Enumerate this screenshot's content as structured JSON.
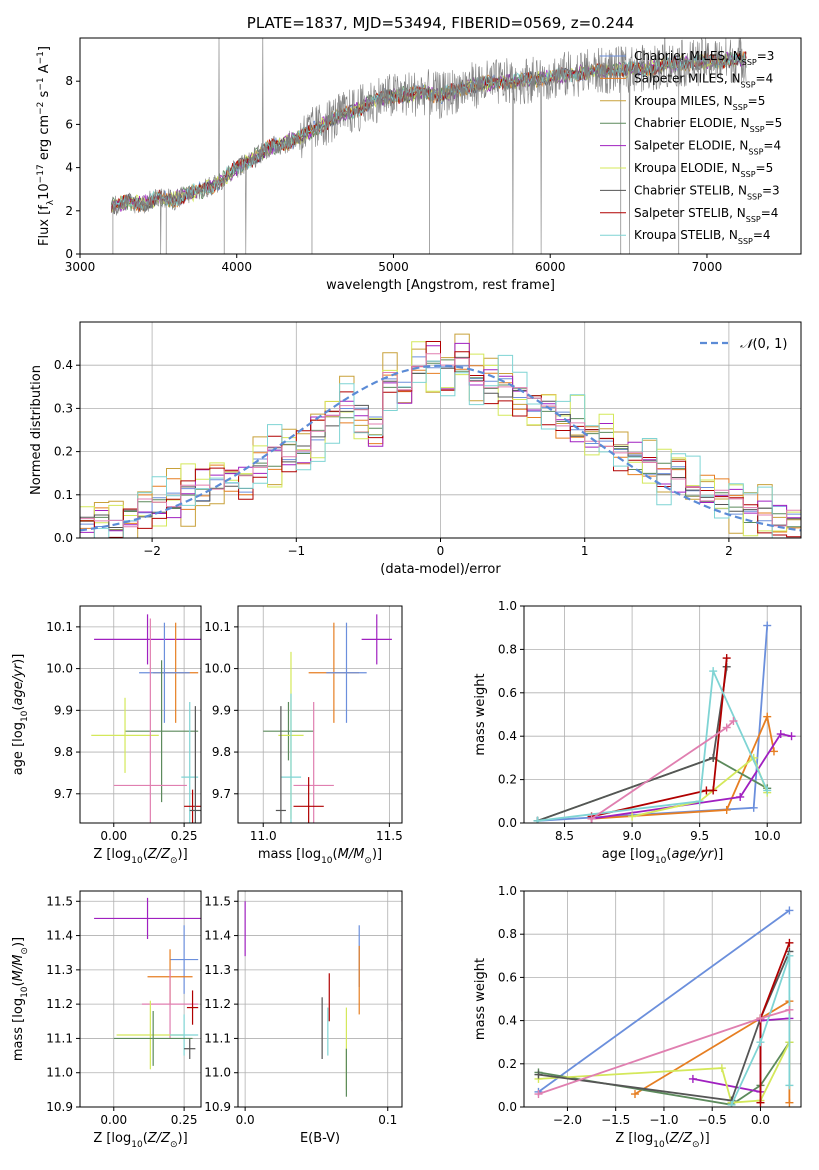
{
  "colors": {
    "Chabrier MILES": "#6b8fdc",
    "Salpeter MILES": "#e67e22",
    "Kroupa MILES": "#c8a13a",
    "Chabrier ELODIE": "#5c8a5c",
    "Salpeter ELODIE": "#a020c0",
    "Kroupa ELODIE": "#d4e85a",
    "Chabrier STELIB": "#555555",
    "Salpeter STELIB": "#b00000",
    "Kroupa STELIB": "#7fd4d4",
    "Pink": "#e07fb0",
    "normal_curve": "#5b8bd6",
    "observed_spectrum": "#808080"
  },
  "chart_data": [
    {
      "id": "spectrum",
      "type": "line",
      "title": "PLATE=1837, MJD=53494, FIBERID=0569, z=0.244",
      "xlabel": "wavelength [Angstrom, rest frame]",
      "ylabel": "Flux [fλ10⁻¹⁷ erg cm⁻² s⁻¹ A⁻¹]",
      "xlim": [
        3000,
        7600
      ],
      "ylim": [
        0,
        10
      ],
      "xticks": [
        3000,
        4000,
        5000,
        6000,
        7000
      ],
      "yticks": [
        0,
        2,
        4,
        6,
        8
      ],
      "grid": false,
      "legend_position": "top-right",
      "continuum": {
        "x": [
          3200,
          3300,
          3400,
          3500,
          3600,
          3700,
          3800,
          3900,
          4000,
          4100,
          4200,
          4300,
          4400,
          4500,
          4600,
          4700,
          4800,
          4900,
          5000,
          5100,
          5200,
          5300,
          5400,
          5500,
          5600,
          5800,
          6000,
          6200,
          6400,
          6600,
          6800,
          7000,
          7200
        ],
        "y": [
          2.2,
          2.4,
          2.3,
          2.6,
          2.5,
          2.8,
          3.0,
          3.4,
          4.0,
          4.4,
          4.9,
          5.1,
          5.4,
          5.8,
          6.2,
          6.5,
          6.8,
          7.2,
          7.3,
          7.4,
          7.5,
          7.3,
          7.6,
          7.8,
          7.9,
          8.0,
          8.2,
          8.4,
          8.5,
          8.6,
          8.8,
          8.9,
          9.0
        ]
      },
      "series": [
        {
          "name": "Chabrier MILES, N$_{SSP}$=3"
        },
        {
          "name": "Salpeter MILES, N$_{SSP}$=4"
        },
        {
          "name": "Kroupa MILES, N$_{SSP}$=5"
        },
        {
          "name": "Chabrier ELODIE, N$_{SSP}$=5"
        },
        {
          "name": "Salpeter ELODIE, N$_{SSP}$=4"
        },
        {
          "name": "Kroupa ELODIE, N$_{SSP}$=5"
        },
        {
          "name": "Chabrier STELIB, N$_{SSP}$=3"
        },
        {
          "name": "Salpeter STELIB, N$_{SSP}$=4"
        },
        {
          "name": "Kroupa STELIB, N$_{SSP}$=4"
        }
      ]
    },
    {
      "id": "residuals",
      "type": "line",
      "xlabel": "(data-model)/error",
      "ylabel": "Normed distribution",
      "xlim": [
        -2.5,
        2.5
      ],
      "ylim": [
        0,
        0.5
      ],
      "xticks": [
        -2,
        -1,
        0,
        1,
        2
      ],
      "yticks": [
        0.0,
        0.1,
        0.2,
        0.3,
        0.4
      ],
      "grid": true,
      "legend_position": "top-right",
      "legend": [
        "$\\mathcal{N}(0, 1)$"
      ],
      "hist_bins": [
        -2.5,
        -2.4,
        -2.3,
        -2.2,
        -2.1,
        -2.0,
        -1.9,
        -1.8,
        -1.7,
        -1.6,
        -1.5,
        -1.4,
        -1.3,
        -1.2,
        -1.1,
        -1.0,
        -0.9,
        -0.8,
        -0.7,
        -0.6,
        -0.5,
        -0.4,
        -0.3,
        -0.2,
        -0.1,
        0.0,
        0.1,
        0.2,
        0.3,
        0.4,
        0.5,
        0.6,
        0.7,
        0.8,
        0.9,
        1.0,
        1.1,
        1.2,
        1.3,
        1.4,
        1.5,
        1.6,
        1.7,
        1.8,
        1.9,
        2.0,
        2.1,
        2.2,
        2.3,
        2.4,
        2.5
      ],
      "hist_values": [
        0.03,
        0.03,
        0.04,
        0.05,
        0.07,
        0.08,
        0.09,
        0.1,
        0.11,
        0.13,
        0.14,
        0.13,
        0.17,
        0.19,
        0.2,
        0.22,
        0.24,
        0.27,
        0.3,
        0.29,
        0.26,
        0.37,
        0.34,
        0.4,
        0.41,
        0.39,
        0.41,
        0.38,
        0.36,
        0.35,
        0.33,
        0.31,
        0.3,
        0.27,
        0.26,
        0.24,
        0.22,
        0.2,
        0.18,
        0.16,
        0.15,
        0.14,
        0.12,
        0.1,
        0.09,
        0.07,
        0.06,
        0.05,
        0.05,
        0.04
      ]
    },
    {
      "id": "age_vs_Z",
      "type": "scatter",
      "xlabel": "Z [log₁₀(Z/Z⊙)]",
      "ylabel": "age  [log₁₀(age/yr)]",
      "xlim": [
        -0.12,
        0.31
      ],
      "ylim": [
        9.63,
        10.15
      ],
      "xticks": [
        0.0,
        0.25
      ],
      "yticks": [
        9.7,
        9.8,
        9.9,
        10.0,
        10.1
      ],
      "grid": true,
      "points": [
        {
          "x": 0.12,
          "y": 10.07,
          "color": "Salpeter ELODIE",
          "xerr": 0.19,
          "yerr": 0.06
        },
        {
          "x": 0.22,
          "y": 9.99,
          "color": "Salpeter MILES",
          "xerr": 0.08,
          "yerr": 0.12
        },
        {
          "x": 0.18,
          "y": 9.99,
          "color": "Chabrier MILES",
          "xerr": 0.09,
          "yerr": 0.12
        },
        {
          "x": 0.17,
          "y": 9.85,
          "color": "Chabrier ELODIE",
          "xerr": 0.13,
          "yerr": 0.17
        },
        {
          "x": 0.04,
          "y": 9.84,
          "color": "Kroupa ELODIE",
          "xerr": 0.12,
          "yerr": 0.09
        },
        {
          "x": 0.27,
          "y": 9.74,
          "color": "Kroupa STELIB",
          "xerr": 0.03,
          "yerr": 0.18
        },
        {
          "x": 0.13,
          "y": 9.72,
          "color": "Pink",
          "xerr": 0.13,
          "yerr": 0.4
        },
        {
          "x": 0.28,
          "y": 9.67,
          "color": "Salpeter STELIB",
          "xerr": 0.03,
          "yerr": 0.04
        },
        {
          "x": 0.29,
          "y": 9.66,
          "color": "Chabrier STELIB",
          "xerr": 0.02,
          "yerr": 0.25
        }
      ]
    },
    {
      "id": "age_vs_mass",
      "type": "scatter",
      "xlabel": "mass [log₁₀(M/M⊙)]",
      "xlim": [
        10.9,
        11.55
      ],
      "ylim": [
        9.63,
        10.15
      ],
      "xticks": [
        11.0,
        11.5
      ],
      "yticks": [
        9.7,
        9.8,
        9.9,
        10.0,
        10.1
      ],
      "grid": true,
      "points": [
        {
          "x": 11.45,
          "y": 10.07,
          "color": "Salpeter ELODIE",
          "xerr": 0.06,
          "yerr": 0.06
        },
        {
          "x": 11.28,
          "y": 9.99,
          "color": "Salpeter MILES",
          "xerr": 0.1,
          "yerr": 0.12
        },
        {
          "x": 11.33,
          "y": 9.99,
          "color": "Chabrier MILES",
          "xerr": 0.08,
          "yerr": 0.12
        },
        {
          "x": 11.1,
          "y": 9.85,
          "color": "Chabrier ELODIE",
          "xerr": 0.1,
          "yerr": 0.07
        },
        {
          "x": 11.11,
          "y": 9.84,
          "color": "Kroupa ELODIE",
          "xerr": 0.05,
          "yerr": 0.2
        },
        {
          "x": 11.11,
          "y": 9.74,
          "color": "Kroupa STELIB",
          "xerr": 0.04,
          "yerr": 0.2
        },
        {
          "x": 11.2,
          "y": 9.72,
          "color": "Pink",
          "xerr": 0.08,
          "yerr": 0.2
        },
        {
          "x": 11.18,
          "y": 9.67,
          "color": "Salpeter STELIB",
          "xerr": 0.06,
          "yerr": 0.07
        },
        {
          "x": 11.07,
          "y": 9.66,
          "color": "Chabrier STELIB",
          "xerr": 0.02,
          "yerr": 0.25
        }
      ]
    },
    {
      "id": "mass_weight_vs_age",
      "type": "line",
      "xlabel": "age  [log₁₀(age/yr)]",
      "ylabel": "mass weight",
      "xlim": [
        8.2,
        10.25
      ],
      "ylim": [
        0,
        1
      ],
      "xticks": [
        8.5,
        9.0,
        9.5,
        10.0
      ],
      "yticks": [
        0.0,
        0.2,
        0.4,
        0.6,
        0.8,
        1.0
      ],
      "grid": true,
      "series": [
        {
          "color": "Chabrier MILES",
          "x": [
            8.3,
            9.9,
            10.0
          ],
          "y": [
            0.01,
            0.07,
            0.91
          ]
        },
        {
          "color": "Salpeter MILES",
          "x": [
            8.7,
            9.7,
            10.0,
            10.05
          ],
          "y": [
            0.02,
            0.06,
            0.49,
            0.33
          ]
        },
        {
          "color": "Chabrier ELODIE",
          "x": [
            8.3,
            9.6,
            10.0
          ],
          "y": [
            0.01,
            0.3,
            0.16
          ]
        },
        {
          "color": "Salpeter ELODIE",
          "x": [
            8.7,
            9.8,
            10.1,
            10.18
          ],
          "y": [
            0.02,
            0.12,
            0.41,
            0.4
          ]
        },
        {
          "color": "Kroupa ELODIE",
          "x": [
            9.0,
            9.5,
            9.9,
            10.0
          ],
          "y": [
            0.03,
            0.1,
            0.3,
            0.14
          ]
        },
        {
          "color": "Chabrier STELIB",
          "x": [
            8.3,
            9.6,
            9.7
          ],
          "y": [
            0.01,
            0.3,
            0.72
          ]
        },
        {
          "color": "Salpeter STELIB",
          "x": [
            8.7,
            9.55,
            9.6,
            9.7
          ],
          "y": [
            0.03,
            0.15,
            0.15,
            0.76
          ]
        },
        {
          "color": "Kroupa STELIB",
          "x": [
            8.3,
            9.5,
            9.6,
            10.0
          ],
          "y": [
            0.01,
            0.1,
            0.7,
            0.15
          ]
        },
        {
          "color": "Pink",
          "x": [
            8.7,
            9.7,
            9.75
          ],
          "y": [
            0.02,
            0.44,
            0.47
          ]
        }
      ]
    },
    {
      "id": "mass_vs_Z",
      "type": "scatter",
      "xlabel": "Z [log₁₀(Z/Z⊙)]",
      "ylabel": "mass [log₁₀(M/M⊙)]",
      "xlim": [
        -0.12,
        0.31
      ],
      "ylim": [
        10.9,
        11.53
      ],
      "xticks": [
        0.0,
        0.25
      ],
      "yticks": [
        10.9,
        11.0,
        11.1,
        11.2,
        11.3,
        11.4,
        11.5
      ],
      "grid": true,
      "points": [
        {
          "x": 0.12,
          "y": 11.45,
          "color": "Salpeter ELODIE",
          "xerr": 0.19,
          "yerr": 0.06
        },
        {
          "x": 0.25,
          "y": 11.33,
          "color": "Chabrier MILES",
          "xerr": 0.05,
          "yerr": 0.1
        },
        {
          "x": 0.2,
          "y": 11.28,
          "color": "Salpeter MILES",
          "xerr": 0.08,
          "yerr": 0.08
        },
        {
          "x": 0.2,
          "y": 11.2,
          "color": "Pink",
          "xerr": 0.1,
          "yerr": 0.1
        },
        {
          "x": 0.28,
          "y": 11.19,
          "color": "Salpeter STELIB",
          "xerr": 0.02,
          "yerr": 0.05
        },
        {
          "x": 0.13,
          "y": 11.11,
          "color": "Kroupa ELODIE",
          "xerr": 0.12,
          "yerr": 0.1
        },
        {
          "x": 0.25,
          "y": 11.11,
          "color": "Kroupa STELIB",
          "xerr": 0.05,
          "yerr": 0.06
        },
        {
          "x": 0.14,
          "y": 11.1,
          "color": "Chabrier ELODIE",
          "xerr": 0.14,
          "yerr": 0.08
        },
        {
          "x": 0.27,
          "y": 11.07,
          "color": "Chabrier STELIB",
          "xerr": 0.02,
          "yerr": 0.03
        }
      ]
    },
    {
      "id": "mass_vs_EBV",
      "type": "scatter",
      "xlabel": "E(B-V)",
      "xlim": [
        -0.005,
        0.11
      ],
      "ylim": [
        10.9,
        11.53
      ],
      "xticks": [
        0.0,
        0.1
      ],
      "yticks": [
        10.9,
        11.0,
        11.1,
        11.2,
        11.3,
        11.4,
        11.5
      ],
      "grid": true,
      "points": [
        {
          "x": 0.0,
          "y": 11.42,
          "color": "Salpeter ELODIE",
          "xerr": 0.0,
          "yerr": 0.08
        },
        {
          "x": 0.08,
          "y": 11.34,
          "color": "Chabrier MILES",
          "xerr": 0.0,
          "yerr": 0.09
        },
        {
          "x": 0.08,
          "y": 11.27,
          "color": "Salpeter MILES",
          "xerr": 0.0,
          "yerr": 0.1
        },
        {
          "x": 0.11,
          "y": 11.27,
          "color": "Pink",
          "xerr": 0.0,
          "yerr": 0.12
        },
        {
          "x": 0.059,
          "y": 11.22,
          "color": "Salpeter STELIB",
          "xerr": 0.0,
          "yerr": 0.07
        },
        {
          "x": 0.071,
          "y": 11.07,
          "color": "Kroupa ELODIE",
          "xerr": 0.0,
          "yerr": 0.12
        },
        {
          "x": 0.058,
          "y": 11.12,
          "color": "Kroupa STELIB",
          "xerr": 0.0,
          "yerr": 0.07
        },
        {
          "x": 0.071,
          "y": 11.0,
          "color": "Chabrier ELODIE",
          "xerr": 0.0,
          "yerr": 0.07
        },
        {
          "x": 0.054,
          "y": 11.13,
          "color": "Chabrier STELIB",
          "xerr": 0.0,
          "yerr": 0.09
        }
      ]
    },
    {
      "id": "mass_weight_vs_Z",
      "type": "line",
      "xlabel": "Z [log₁₀(Z/Z⊙)]",
      "ylabel": "mass weight",
      "xlim": [
        -2.45,
        0.42
      ],
      "ylim": [
        0,
        1
      ],
      "xticks": [
        -2.0,
        -1.5,
        -1.0,
        -0.5,
        0.0
      ],
      "yticks": [
        0.0,
        0.2,
        0.4,
        0.6,
        0.8,
        1.0
      ],
      "grid": true,
      "series": [
        {
          "color": "Chabrier MILES",
          "x": [
            -2.3,
            0.3
          ],
          "y": [
            0.07,
            0.91
          ]
        },
        {
          "color": "Salpeter MILES",
          "x": [
            -1.3,
            0.0,
            0.3,
            0.3
          ],
          "y": [
            0.06,
            0.41,
            0.49,
            0.02
          ]
        },
        {
          "color": "Chabrier ELODIE",
          "x": [
            -2.3,
            -0.3,
            0.0,
            0.3
          ],
          "y": [
            0.16,
            0.01,
            0.1,
            0.3
          ]
        },
        {
          "color": "Salpeter ELODIE",
          "x": [
            -0.7,
            0.0,
            0.0,
            0.3
          ],
          "y": [
            0.13,
            0.07,
            0.4,
            0.41
          ]
        },
        {
          "color": "Kroupa ELODIE",
          "x": [
            -2.3,
            -0.4,
            -0.3,
            0.0,
            0.3
          ],
          "y": [
            0.13,
            0.18,
            0.02,
            0.03,
            0.3
          ]
        },
        {
          "color": "Chabrier STELIB",
          "x": [
            -2.3,
            -0.3,
            0.0,
            0.3
          ],
          "y": [
            0.15,
            0.03,
            0.41,
            0.72
          ]
        },
        {
          "color": "Salpeter STELIB",
          "x": [
            0.0,
            0.0,
            0.3
          ],
          "y": [
            0.02,
            0.41,
            0.76
          ]
        },
        {
          "color": "Kroupa STELIB",
          "x": [
            -0.3,
            0.0,
            0.3,
            0.3
          ],
          "y": [
            0.01,
            0.3,
            0.7,
            0.1
          ]
        },
        {
          "color": "Pink",
          "x": [
            -2.3,
            0.0,
            0.3
          ],
          "y": [
            0.06,
            0.41,
            0.45
          ]
        }
      ]
    }
  ]
}
